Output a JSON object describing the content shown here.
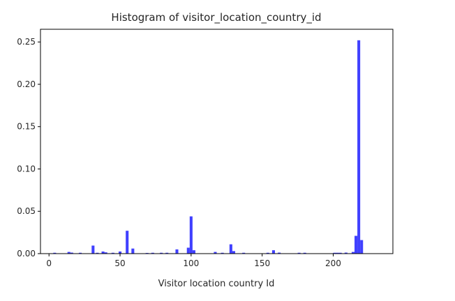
{
  "chart_data": {
    "type": "bar",
    "title": "Histogram of visitor_location_country_id",
    "xlabel": "Visitor location country Id",
    "ylabel": "",
    "xlim": [
      -6,
      242
    ],
    "ylim": [
      0,
      0.265
    ],
    "xticks": [
      0,
      50,
      100,
      150,
      200
    ],
    "xtick_labels": [
      "0",
      "50",
      "100",
      "150",
      "200"
    ],
    "yticks": [
      0,
      0.05,
      0.1,
      0.15,
      0.2,
      0.25
    ],
    "ytick_labels": [
      "0.00",
      "0.05",
      "0.10",
      "0.15",
      "0.20",
      "0.25"
    ],
    "bin_width": 2,
    "grid": false,
    "bar_color": "#0000ff",
    "bar_opacity": 0.75,
    "bins": [
      {
        "x": 4,
        "value": 0.001
      },
      {
        "x": 14,
        "value": 0.002
      },
      {
        "x": 16,
        "value": 0.0012
      },
      {
        "x": 22,
        "value": 0.001
      },
      {
        "x": 31,
        "value": 0.0095
      },
      {
        "x": 34,
        "value": 0.001
      },
      {
        "x": 38,
        "value": 0.0025
      },
      {
        "x": 40,
        "value": 0.0015
      },
      {
        "x": 45,
        "value": 0.001
      },
      {
        "x": 50,
        "value": 0.0025
      },
      {
        "x": 55,
        "value": 0.027
      },
      {
        "x": 59,
        "value": 0.006
      },
      {
        "x": 69,
        "value": 0.0008
      },
      {
        "x": 73,
        "value": 0.001
      },
      {
        "x": 79,
        "value": 0.001
      },
      {
        "x": 83,
        "value": 0.001
      },
      {
        "x": 90,
        "value": 0.005
      },
      {
        "x": 98,
        "value": 0.007
      },
      {
        "x": 100,
        "value": 0.044
      },
      {
        "x": 102,
        "value": 0.004
      },
      {
        "x": 117,
        "value": 0.002
      },
      {
        "x": 122,
        "value": 0.001
      },
      {
        "x": 128,
        "value": 0.011
      },
      {
        "x": 130,
        "value": 0.003
      },
      {
        "x": 137,
        "value": 0.001
      },
      {
        "x": 154,
        "value": 0.001
      },
      {
        "x": 158,
        "value": 0.004
      },
      {
        "x": 162,
        "value": 0.0012
      },
      {
        "x": 176,
        "value": 0.001
      },
      {
        "x": 180,
        "value": 0.001
      },
      {
        "x": 201,
        "value": 0.001
      },
      {
        "x": 203,
        "value": 0.001
      },
      {
        "x": 205,
        "value": 0.001
      },
      {
        "x": 209,
        "value": 0.0012
      },
      {
        "x": 214,
        "value": 0.002
      },
      {
        "x": 216,
        "value": 0.021
      },
      {
        "x": 218,
        "value": 0.252
      },
      {
        "x": 220,
        "value": 0.016
      }
    ]
  }
}
